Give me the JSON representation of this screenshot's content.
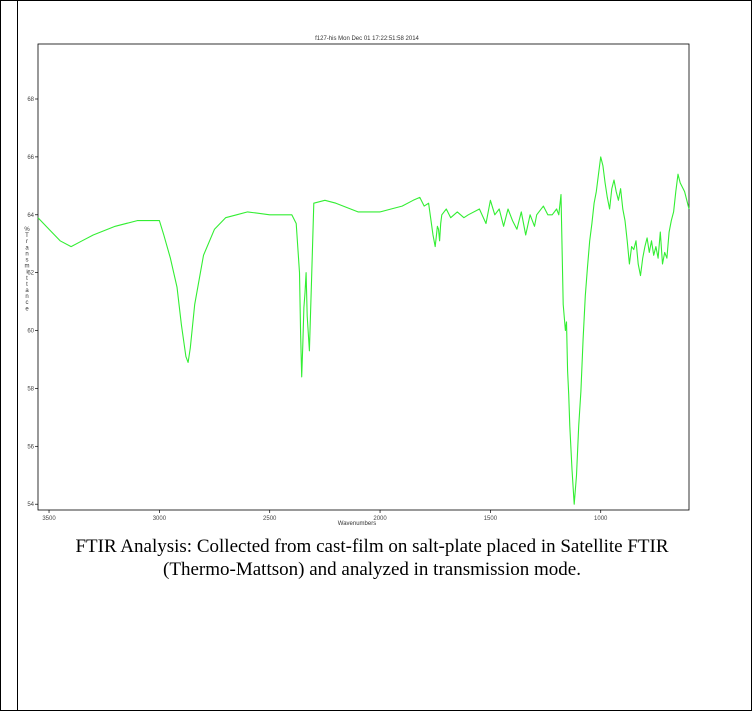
{
  "chart_data": {
    "type": "line",
    "title": "f127-his   Mon Dec 01 17:22:51:58 2014",
    "xlabel": "Wavenumbers",
    "ylabel": "%Transmittance",
    "xlim": [
      3550,
      600
    ],
    "ylim": [
      53.8,
      69.9
    ],
    "x_reversed": true,
    "grid": false,
    "line_color": "#33ee33",
    "x_ticks": [
      3500,
      3000,
      2500,
      2000,
      1500,
      1000
    ],
    "y_ticks": [
      54,
      56,
      58,
      60,
      62,
      64,
      66,
      68
    ],
    "series": [
      {
        "x": [
          3550,
          3500,
          3450,
          3400,
          3350,
          3300,
          3200,
          3100,
          3000,
          2980,
          2950,
          2920,
          2900,
          2880,
          2870,
          2860,
          2840,
          2800,
          2750,
          2700,
          2650,
          2600,
          2500,
          2450,
          2400,
          2380,
          2365,
          2360,
          2355,
          2350,
          2345,
          2340,
          2335,
          2330,
          2320,
          2310,
          2300,
          2250,
          2200,
          2100,
          2000,
          1950,
          1900,
          1850,
          1820,
          1800,
          1780,
          1760,
          1750,
          1740,
          1735,
          1730,
          1725,
          1720,
          1700,
          1680,
          1650,
          1620,
          1600,
          1550,
          1520,
          1500,
          1480,
          1460,
          1440,
          1420,
          1400,
          1380,
          1360,
          1340,
          1320,
          1300,
          1290,
          1280,
          1260,
          1240,
          1220,
          1200,
          1190,
          1180,
          1170,
          1160,
          1155,
          1150,
          1145,
          1140,
          1130,
          1120,
          1110,
          1100,
          1090,
          1080,
          1070,
          1060,
          1050,
          1040,
          1030,
          1020,
          1010,
          1000,
          990,
          980,
          970,
          960,
          950,
          940,
          930,
          920,
          910,
          900,
          890,
          880,
          870,
          860,
          850,
          840,
          830,
          820,
          810,
          800,
          790,
          780,
          770,
          760,
          750,
          740,
          730,
          720,
          710,
          700,
          690,
          680,
          670,
          660,
          650,
          640,
          620,
          600
        ],
        "y": [
          63.9,
          63.5,
          63.1,
          62.9,
          63.1,
          63.3,
          63.6,
          63.8,
          63.8,
          63.3,
          62.5,
          61.5,
          60.2,
          59.1,
          58.9,
          59.4,
          60.9,
          62.6,
          63.5,
          63.9,
          64.0,
          64.1,
          64.0,
          64.0,
          64.0,
          63.7,
          62.0,
          59.9,
          58.4,
          59.5,
          60.8,
          61.3,
          62.0,
          60.5,
          59.3,
          61.8,
          64.4,
          64.5,
          64.4,
          64.1,
          64.1,
          64.2,
          64.3,
          64.5,
          64.6,
          64.3,
          64.4,
          63.3,
          62.9,
          63.6,
          63.5,
          63.1,
          63.7,
          64.0,
          64.2,
          63.9,
          64.1,
          63.9,
          64.0,
          64.2,
          63.7,
          64.5,
          64.0,
          64.2,
          63.6,
          64.2,
          63.8,
          63.5,
          64.1,
          63.3,
          64.0,
          63.6,
          64.0,
          64.1,
          64.3,
          64.0,
          64.0,
          64.2,
          64.0,
          64.7,
          60.9,
          60.0,
          60.3,
          58.6,
          57.8,
          56.7,
          55.2,
          54.0,
          55.0,
          56.7,
          57.9,
          59.7,
          61.2,
          62.2,
          63.1,
          63.7,
          64.4,
          64.8,
          65.4,
          66.0,
          65.7,
          65.1,
          64.6,
          64.2,
          64.9,
          65.2,
          64.8,
          64.5,
          64.9,
          64.2,
          63.8,
          63.1,
          62.3,
          62.9,
          62.8,
          63.1,
          62.3,
          61.9,
          62.5,
          62.9,
          63.2,
          62.7,
          63.1,
          62.6,
          62.9,
          62.5,
          63.4,
          62.3,
          62.7,
          62.5,
          63.4,
          63.8,
          64.1,
          64.8,
          65.4,
          65.1,
          64.8,
          64.2
        ]
      }
    ]
  },
  "caption": "FTIR Analysis: Collected from cast-film on salt-plate placed in Satellite FTIR (Thermo-Mattson) and analyzed in transmission mode."
}
